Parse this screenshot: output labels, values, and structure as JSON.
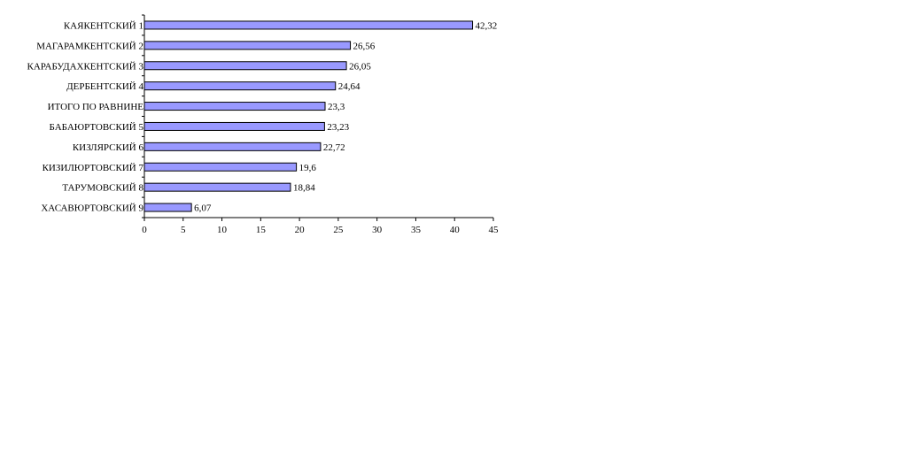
{
  "chart_data": {
    "type": "bar",
    "orientation": "horizontal",
    "categories": [
      "КАЯКЕНТСКИЙ 1",
      "МАГАРАМКЕНТСКИЙ 2",
      "КАРАБУДАХКЕНТСКИЙ 3",
      "ДЕРБЕНТСКИЙ 4",
      "ИТОГО ПО РАВНИНЕ",
      "БАБАЮРТОВСКИЙ 5",
      "КИЗЛЯРСКИЙ 6",
      "КИЗИЛЮРТОВСКИЙ 7",
      "ТАРУМОВСКИЙ 8",
      "ХАСАВЮРТОВСКИЙ 9"
    ],
    "values": [
      42.32,
      26.56,
      26.05,
      24.64,
      23.3,
      23.23,
      22.72,
      19.6,
      18.84,
      6.07
    ],
    "value_labels": [
      "42,32",
      "26,56",
      "26,05",
      "24,64",
      "23,3",
      "23,23",
      "22,72",
      "19,6",
      "18,84",
      "6,07"
    ],
    "xlim": [
      0,
      45
    ],
    "xticks": [
      0,
      5,
      10,
      15,
      20,
      25,
      30,
      35,
      40,
      45
    ],
    "grid": false,
    "legend": "none",
    "bar_color": "#9999ff",
    "bar_border_color": "#000000",
    "title": "",
    "xlabel": "",
    "ylabel": ""
  }
}
